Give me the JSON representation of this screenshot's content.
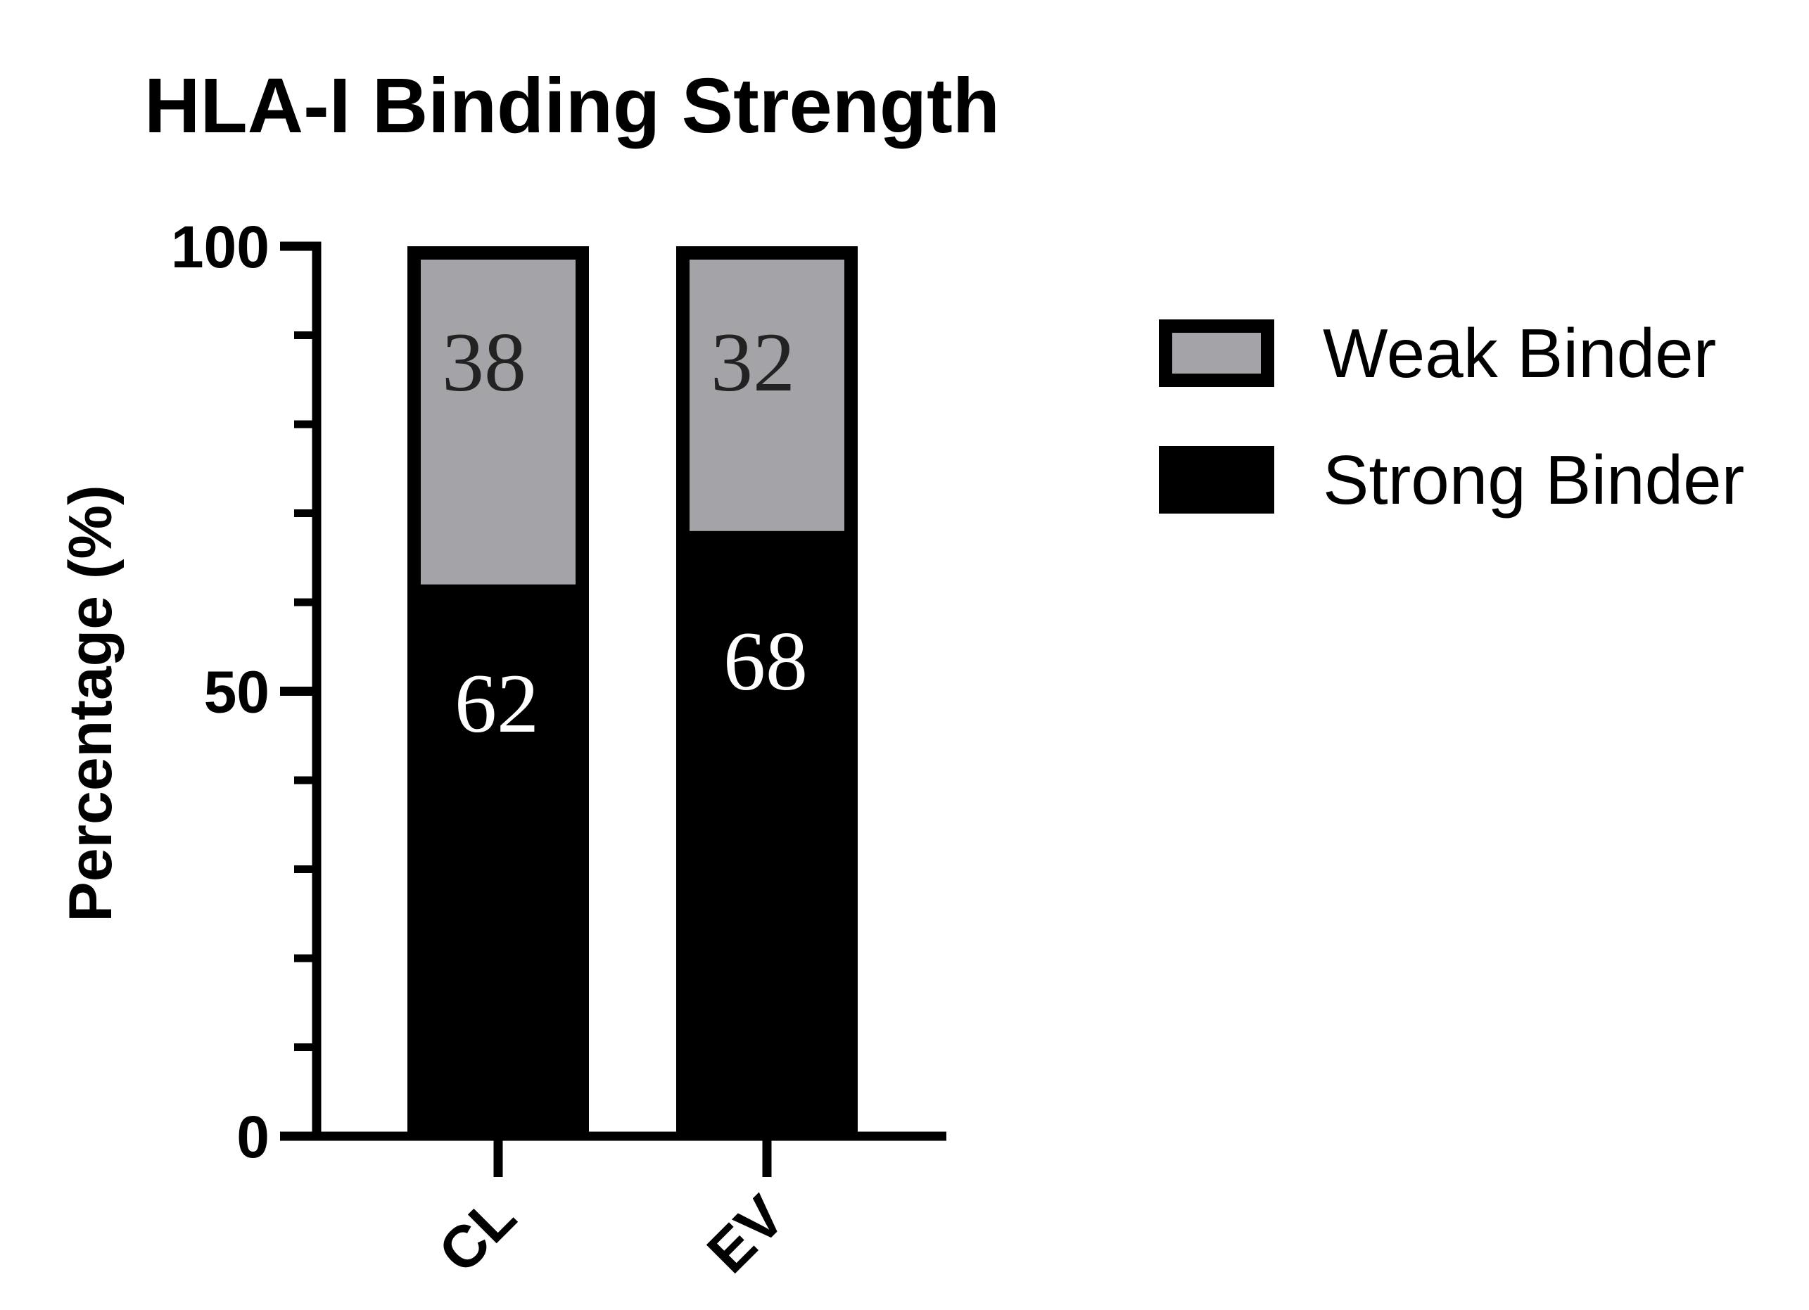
{
  "chart_data": {
    "type": "bar",
    "stacked": true,
    "title": "HLA-I Binding Strength",
    "ylabel": "Percentage (%)",
    "xlabel": "",
    "categories": [
      "CL",
      "EV"
    ],
    "ylim": [
      0,
      100
    ],
    "yticks": [
      0,
      50,
      100
    ],
    "yticks_minor_step": 10,
    "series": [
      {
        "name": "Strong Binder",
        "values": [
          62,
          68
        ],
        "color": "#000000",
        "label_color": "#ffffff",
        "labels": [
          "62",
          "68"
        ]
      },
      {
        "name": "Weak Binder",
        "values": [
          38,
          32
        ],
        "color": "#a4a4a8",
        "label_color": "#222222",
        "labels": [
          "38",
          "32"
        ]
      }
    ],
    "legend": {
      "position": "right",
      "entries": [
        "Weak Binder",
        "Strong Binder"
      ]
    },
    "grid": false
  }
}
